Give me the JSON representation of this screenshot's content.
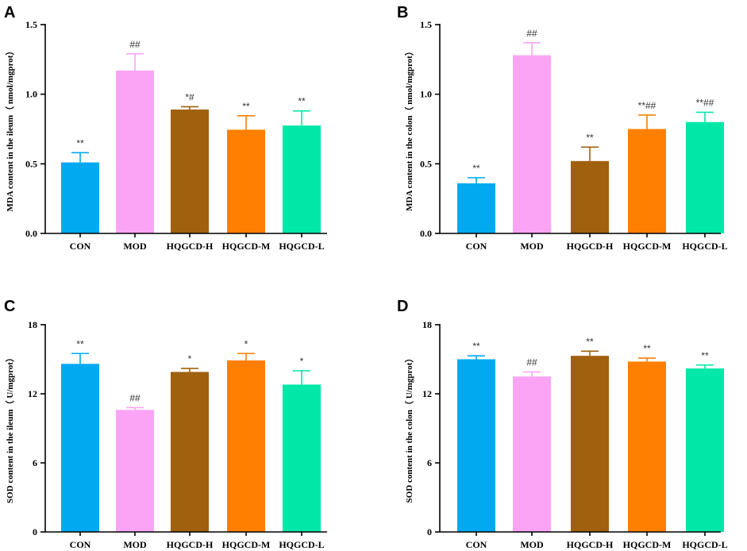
{
  "chart_data": [
    {
      "panel": "A",
      "type": "bar",
      "title": "",
      "xlabel": "",
      "ylabel": "MDA content in the ileum（ nmol/mgprot）",
      "ylim": [
        0,
        1.5
      ],
      "yticks": [
        "0.0",
        "0.5",
        "1.0",
        "1.5"
      ],
      "categories": [
        "CON",
        "MOD",
        "HQGCD-H",
        "HQGCD-M",
        "HQGCD-L"
      ],
      "values": [
        0.51,
        1.17,
        0.89,
        0.745,
        0.775
      ],
      "errors": [
        0.07,
        0.12,
        0.02,
        0.1,
        0.105
      ],
      "labels": [
        "**",
        "##",
        "*#",
        "**",
        "**"
      ]
    },
    {
      "panel": "B",
      "type": "bar",
      "title": "",
      "xlabel": "",
      "ylabel": "MDA content in the colon（ nmol/mgprot）",
      "ylim": [
        0,
        1.5
      ],
      "yticks": [
        "0.0",
        "0.5",
        "1.0",
        "1.5"
      ],
      "categories": [
        "CON",
        "MOD",
        "HQGCD-H",
        "HQGCD-M",
        "HQGCD-L"
      ],
      "values": [
        0.36,
        1.28,
        0.52,
        0.75,
        0.8
      ],
      "errors": [
        0.04,
        0.09,
        0.1,
        0.1,
        0.07
      ],
      "labels": [
        "**",
        "##",
        "**",
        "**##",
        "**##"
      ]
    },
    {
      "panel": "C",
      "type": "bar",
      "title": "",
      "xlabel": "",
      "ylabel": "SOD content in the ileum（ U/mgprot）",
      "ylim": [
        0,
        18
      ],
      "yticks": [
        "0",
        "6",
        "12",
        "18"
      ],
      "categories": [
        "CON",
        "MOD",
        "HQGCD-H",
        "HQGCD-M",
        "HQGCD-L"
      ],
      "values": [
        14.6,
        10.6,
        13.9,
        14.9,
        12.8
      ],
      "errors": [
        0.9,
        0.2,
        0.3,
        0.6,
        1.2
      ],
      "labels": [
        "**",
        "##",
        "*",
        "*",
        "*"
      ]
    },
    {
      "panel": "D",
      "type": "bar",
      "title": "",
      "xlabel": "",
      "ylabel": "SOD content in the colon（ U/mgprot）",
      "ylim": [
        0,
        18
      ],
      "yticks": [
        "0",
        "6",
        "12",
        "18"
      ],
      "categories": [
        "CON",
        "MOD",
        "HQGCD-H",
        "HQGCD-M",
        "HQGCD-L"
      ],
      "values": [
        15.0,
        13.5,
        15.3,
        14.8,
        14.2
      ],
      "errors": [
        0.3,
        0.4,
        0.4,
        0.3,
        0.3
      ],
      "labels": [
        "**",
        "##",
        "**",
        "**",
        "**"
      ]
    }
  ],
  "colors": {
    "bars": [
      "#00a9f0",
      "#fba4f5",
      "#a0600e",
      "#ff7f00",
      "#00e7a7"
    ],
    "errors": [
      "#00a9f0",
      "#fba4f5",
      "#a0600e",
      "#ff7f00",
      "#00e7a7"
    ],
    "axis": "#000000"
  }
}
